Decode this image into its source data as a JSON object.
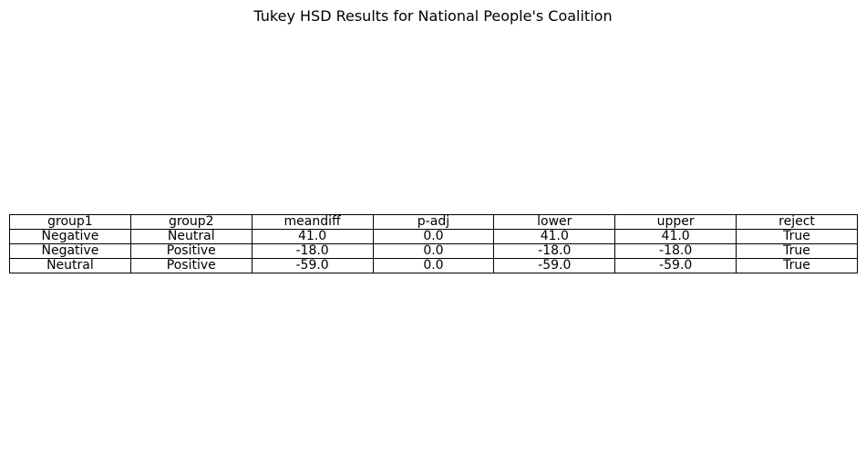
{
  "chart_data": {
    "type": "table",
    "title": "Tukey HSD Results for National People's Coalition",
    "columns": [
      "group1",
      "group2",
      "meandiff",
      "p-adj",
      "lower",
      "upper",
      "reject"
    ],
    "rows": [
      [
        "Negative",
        "Neutral",
        "41.0",
        "0.0",
        "41.0",
        "41.0",
        "True"
      ],
      [
        "Negative",
        "Positive",
        "-18.0",
        "0.0",
        "-18.0",
        "-18.0",
        "True"
      ],
      [
        "Neutral",
        "Positive",
        "-59.0",
        "0.0",
        "-59.0",
        "-59.0",
        "True"
      ]
    ]
  }
}
